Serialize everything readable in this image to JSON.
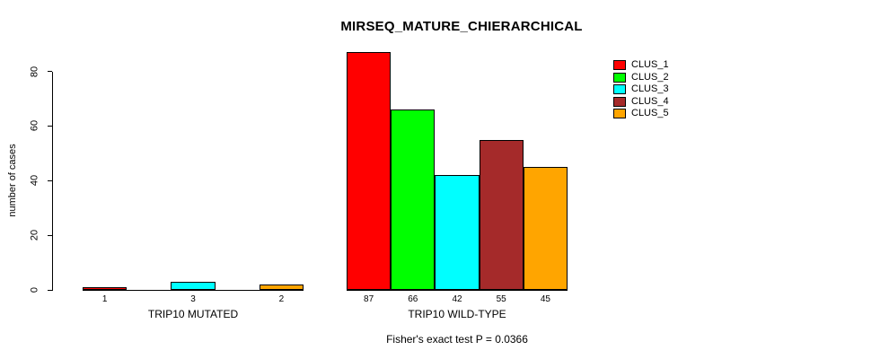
{
  "chart_data": {
    "type": "bar",
    "title": "MIRSEQ_MATURE_CHIERARCHICAL",
    "ylabel": "number of cases",
    "xlabel": "",
    "ylim": [
      0,
      87
    ],
    "yticks": [
      0,
      20,
      40,
      60,
      80
    ],
    "grid": false,
    "legend_position": "top-right",
    "legend": [
      {
        "label": "CLUS_1",
        "color": "#FF0000"
      },
      {
        "label": "CLUS_2",
        "color": "#00FF00"
      },
      {
        "label": "CLUS_3",
        "color": "#00FFFF"
      },
      {
        "label": "CLUS_4",
        "color": "#A52A2A"
      },
      {
        "label": "CLUS_5",
        "color": "#FFA500"
      }
    ],
    "groups": [
      {
        "label": "TRIP10 MUTATED",
        "values": [
          1,
          0,
          3,
          0,
          2
        ]
      },
      {
        "label": "TRIP10 WILD-TYPE",
        "values": [
          87,
          66,
          42,
          55,
          45
        ]
      }
    ],
    "footnote": "Fisher's exact test P = 0.0366"
  }
}
